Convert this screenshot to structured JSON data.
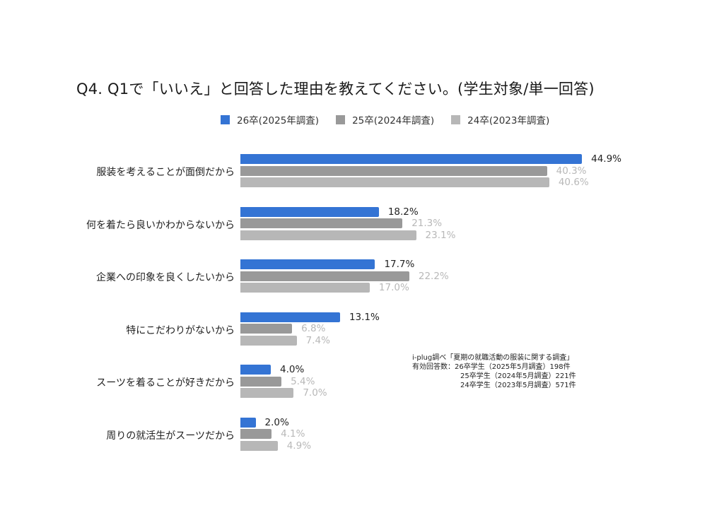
{
  "title": "Q4. Q1で「いいえ」と回答した理由を教えてください。(学生対象/単一回答)",
  "legend": [
    {
      "label": "26卒(2025年調査)",
      "color": "#3474d4"
    },
    {
      "label": "25卒(2024年調査)",
      "color": "#999999"
    },
    {
      "label": "24卒(2023年調査)",
      "color": "#b7b7b7"
    }
  ],
  "note": {
    "source": "i-plug調べ「夏期の就職活動の服装に関する調査」",
    "line1": "有効回答数：26卒学生（2025年5月調査）198件",
    "line2": "25卒学生（2024年5月調査）221件",
    "line3": "24卒学生（2023年5月調査）571件"
  },
  "chart_data": {
    "type": "bar",
    "orientation": "horizontal",
    "title": "Q4. Q1で「いいえ」と回答した理由を教えてください。(学生対象/単一回答)",
    "xlabel": "",
    "ylabel": "",
    "grid": false,
    "legend_position": "top",
    "unit": "%",
    "categories": [
      "服装を考えることが面倒だから",
      "何を着たら良いかわからないから",
      "企業への印象を良くしたいから",
      "特にこだわりがないから",
      "スーツを着ることが好きだから",
      "周りの就活生がスーツだから"
    ],
    "series": [
      {
        "name": "26卒(2025年調査)",
        "color": "#3474d4",
        "values": [
          44.9,
          18.2,
          17.7,
          13.1,
          4.0,
          2.0
        ]
      },
      {
        "name": "25卒(2024年調査)",
        "color": "#999999",
        "values": [
          40.3,
          21.3,
          22.2,
          6.8,
          5.4,
          4.1
        ]
      },
      {
        "name": "24卒(2023年調査)",
        "color": "#b7b7b7",
        "values": [
          40.6,
          23.1,
          17.0,
          7.4,
          7.0,
          4.9
        ]
      }
    ],
    "value_labels": [
      [
        "44.9%",
        "40.3%",
        "40.6%"
      ],
      [
        "18.2%",
        "21.3%",
        "23.1%"
      ],
      [
        "17.7%",
        "22.2%",
        "17.0%"
      ],
      [
        "13.1%",
        "6.8%",
        "7.4%"
      ],
      [
        "4.0%",
        "5.4%",
        "7.0%"
      ],
      [
        "2.0%",
        "4.1%",
        "4.9%"
      ]
    ],
    "xlim": [
      0,
      50
    ]
  }
}
